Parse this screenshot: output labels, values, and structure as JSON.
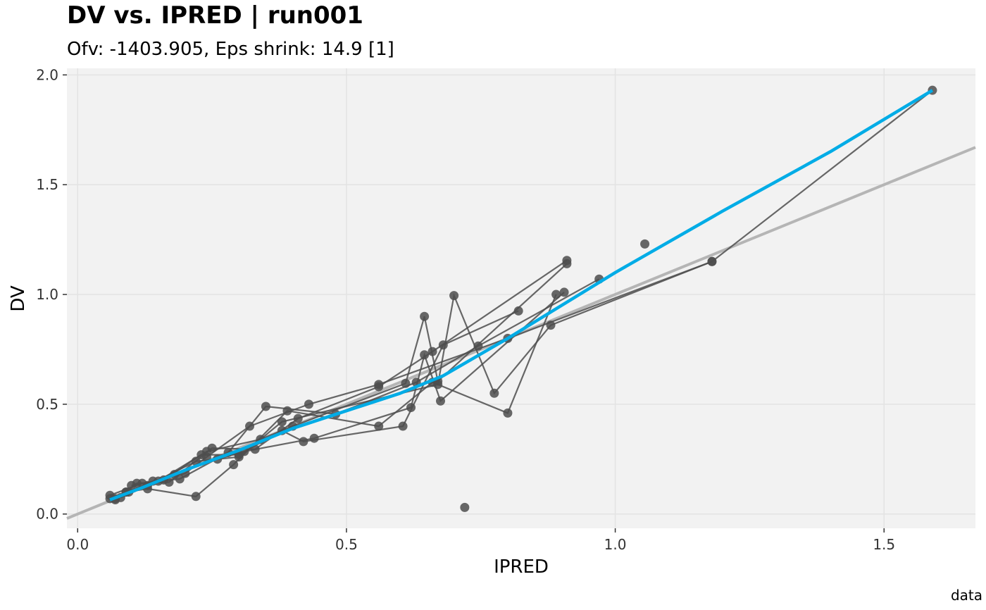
{
  "chart_data": {
    "type": "scatter",
    "title": "DV vs. IPRED | run001",
    "subtitle": "Ofv: -1403.905, Eps shrink: 14.9 [1]",
    "xlabel": "IPRED",
    "ylabel": "DV",
    "caption": "data",
    "xlim": [
      -0.02,
      1.67
    ],
    "ylim": [
      -0.065,
      2.03
    ],
    "x_ticks": [
      0.0,
      0.5,
      1.0,
      1.5
    ],
    "x_tick_labels": [
      "0.0",
      "0.5",
      "1.0",
      "1.5"
    ],
    "y_ticks": [
      0.0,
      0.5,
      1.0,
      1.5,
      2.0
    ],
    "y_tick_labels": [
      "0.0",
      "0.5",
      "1.0",
      "1.5",
      "2.0"
    ],
    "grid": true,
    "colors": {
      "panel": "#f2f2f2",
      "grid": "#e3e3e3",
      "points": "#4d4d4d",
      "lines": "#4d4d4d",
      "identity": "#b5b5b5",
      "smooth": "#00ace6"
    },
    "identity_line": {
      "slope": 1,
      "intercept": 0
    },
    "smooth_line": {
      "x": [
        0.06,
        0.12,
        0.2,
        0.3,
        0.4,
        0.5,
        0.6,
        0.68,
        0.8,
        1.0,
        1.2,
        1.4,
        1.59
      ],
      "y": [
        0.065,
        0.12,
        0.2,
        0.29,
        0.39,
        0.47,
        0.55,
        0.63,
        0.8,
        1.1,
        1.38,
        1.65,
        1.93
      ]
    },
    "individuals": [
      {
        "x": [
          0.06,
          0.095,
          0.14,
          0.2,
          0.24,
          0.32,
          0.43,
          0.56,
          0.8,
          1.18,
          1.59
        ],
        "y": [
          0.07,
          0.1,
          0.15,
          0.185,
          0.26,
          0.4,
          0.5,
          0.59,
          0.8,
          1.15,
          1.93
        ]
      },
      {
        "x": [
          0.07,
          0.11,
          0.17,
          0.25,
          0.33,
          0.41,
          0.56,
          0.66,
          0.91
        ],
        "y": [
          0.065,
          0.14,
          0.145,
          0.3,
          0.295,
          0.435,
          0.58,
          0.74,
          1.155
        ]
      },
      {
        "x": [
          0.06,
          0.12,
          0.19,
          0.28,
          0.35,
          0.48,
          0.63,
          0.745,
          0.97
        ],
        "y": [
          0.085,
          0.14,
          0.16,
          0.28,
          0.49,
          0.455,
          0.6,
          0.765,
          1.07
        ]
      },
      {
        "x": [
          0.09,
          0.13,
          0.22,
          0.29,
          0.39,
          0.56,
          0.66,
          0.8,
          0.89
        ],
        "y": [
          0.1,
          0.115,
          0.08,
          0.225,
          0.47,
          0.4,
          0.6,
          0.46,
          1.0
        ]
      },
      {
        "x": [
          0.1,
          0.16,
          0.23,
          0.3,
          0.38,
          0.42,
          0.605,
          0.68,
          0.82
        ],
        "y": [
          0.13,
          0.155,
          0.27,
          0.27,
          0.38,
          0.33,
          0.4,
          0.77,
          0.925
        ]
      },
      {
        "x": [
          0.08,
          0.15,
          0.24,
          0.34,
          0.4,
          0.61,
          0.645,
          0.67,
          0.91
        ],
        "y": [
          0.075,
          0.15,
          0.285,
          0.34,
          0.4,
          0.595,
          0.9,
          0.605,
          1.14
        ]
      },
      {
        "x": [
          0.09,
          0.18,
          0.26,
          0.31,
          0.44,
          0.62,
          0.645,
          0.675,
          0.905
        ],
        "y": [
          0.1,
          0.18,
          0.25,
          0.285,
          0.345,
          0.485,
          0.725,
          0.515,
          1.01
        ]
      },
      {
        "x": [
          0.07,
          0.13,
          0.22,
          0.3,
          0.38,
          0.67,
          0.7,
          0.775,
          0.88,
          1.18
        ],
        "y": [
          0.07,
          0.13,
          0.24,
          0.26,
          0.42,
          0.59,
          0.995,
          0.55,
          0.86,
          1.15
        ]
      }
    ],
    "extra_points": [
      {
        "x": 1.055,
        "y": 1.23
      },
      {
        "x": 0.72,
        "y": 0.03
      }
    ]
  }
}
